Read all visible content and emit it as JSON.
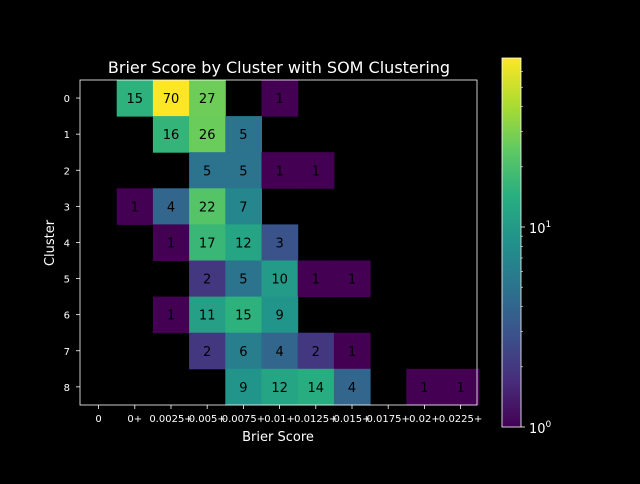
{
  "chart_data": {
    "type": "heatmap",
    "title": "Brier Score by Cluster with SOM Clustering",
    "xlabel": "Brier Score",
    "ylabel": "Cluster",
    "x_categories": [
      "0",
      "0+",
      "0.0025+",
      "0.005+",
      "0.0075+",
      "0.01+",
      "0.0125+",
      "0.015+",
      "0.0175+",
      "0.02+",
      "0.0225+"
    ],
    "y_categories": [
      "0",
      "1",
      "2",
      "3",
      "4",
      "5",
      "6",
      "7",
      "8"
    ],
    "values": [
      [
        null,
        15,
        70,
        27,
        null,
        1,
        null,
        null,
        null,
        null,
        null
      ],
      [
        null,
        null,
        16,
        26,
        5,
        null,
        null,
        null,
        null,
        null,
        null
      ],
      [
        null,
        null,
        null,
        5,
        5,
        1,
        1,
        null,
        null,
        null,
        null
      ],
      [
        null,
        1,
        4,
        22,
        7,
        null,
        null,
        null,
        null,
        null,
        null
      ],
      [
        null,
        null,
        1,
        17,
        12,
        3,
        null,
        null,
        null,
        null,
        null
      ],
      [
        null,
        null,
        null,
        2,
        5,
        10,
        1,
        1,
        null,
        null,
        null
      ],
      [
        null,
        null,
        1,
        11,
        15,
        9,
        null,
        null,
        null,
        null,
        null
      ],
      [
        null,
        null,
        null,
        2,
        6,
        4,
        2,
        1,
        null,
        null,
        null
      ],
      [
        null,
        null,
        null,
        null,
        9,
        12,
        14,
        4,
        null,
        1,
        1
      ]
    ],
    "colorscale": "viridis",
    "color_scale_type": "log",
    "vmin": 1,
    "vmax": 70,
    "colorbar_ticks": [
      {
        "value": 1,
        "base": "10",
        "exp": "0"
      },
      {
        "value": 10,
        "base": "10",
        "exp": "1"
      }
    ]
  }
}
